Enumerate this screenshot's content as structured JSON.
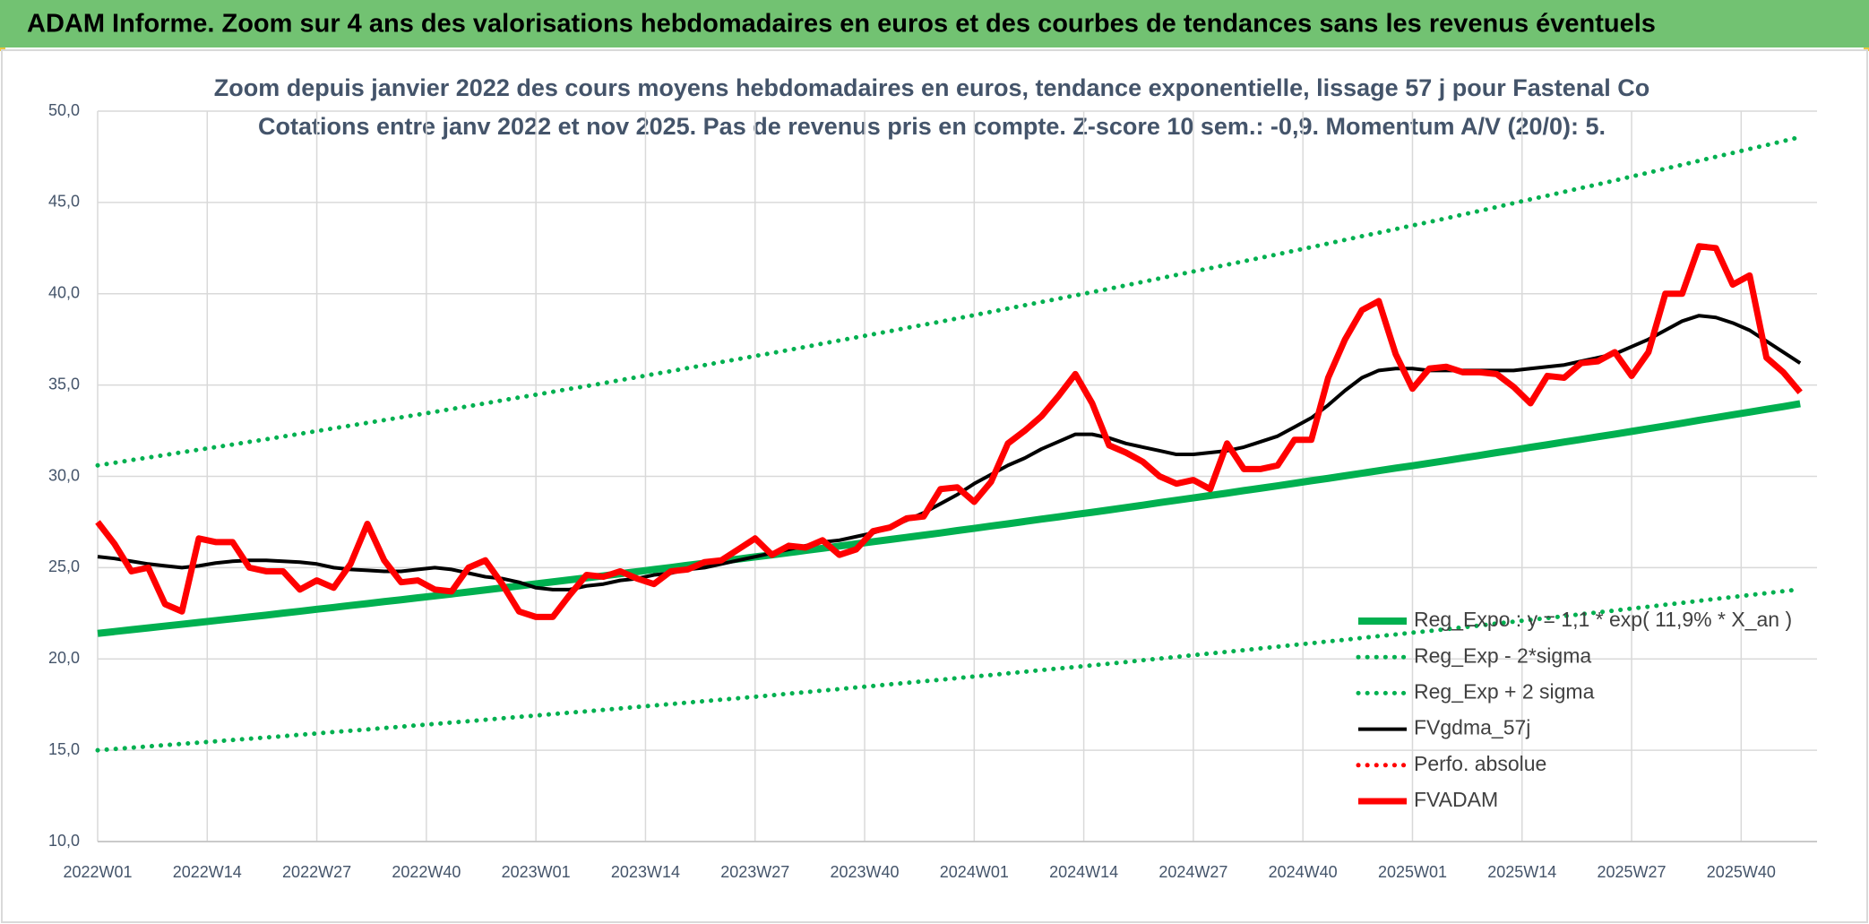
{
  "header": {
    "title": "ADAM Informe. Zoom sur 4 ans des valorisations hebdomadaires en euros et des courbes de tendances sans les revenus éventuels"
  },
  "chart_data": {
    "type": "line",
    "title": "Zoom depuis janvier 2022 des cours moyens hebdomadaires en euros, tendance exponentielle, lissage 57 j pour Fastenal Co",
    "subtitle": "Cotations entre janv 2022 et nov 2025. Pas de revenus pris en compte. Z-score 10 sem.: -0,9. Momentum A/V (20/0): 5.",
    "x": [
      0,
      2,
      4,
      6,
      8,
      10,
      12,
      14,
      16,
      18,
      20,
      22,
      24,
      26,
      28,
      30,
      32,
      34,
      36,
      38,
      40,
      42,
      44,
      46,
      48,
      50,
      52,
      54,
      56,
      58,
      60,
      62,
      64,
      66,
      68,
      70,
      72,
      74,
      76,
      78,
      80,
      82,
      84,
      86,
      88,
      90,
      92,
      94,
      96,
      98,
      100,
      102,
      104,
      106,
      108,
      110,
      112,
      114,
      116,
      118,
      120,
      122,
      124,
      126,
      128,
      130,
      132,
      134,
      136,
      138,
      140,
      142,
      144,
      146,
      148,
      150,
      152,
      154,
      156,
      158,
      160,
      162,
      164,
      166,
      168,
      170,
      172,
      174,
      176,
      178,
      180,
      182,
      184,
      186,
      188,
      190,
      192,
      194,
      196,
      198,
      200,
      202
    ],
    "xlim": [
      0,
      204
    ],
    "xticks": [
      {
        "value": 0,
        "label": "2022W01"
      },
      {
        "value": 13,
        "label": "2022W14"
      },
      {
        "value": 26,
        "label": "2022W27"
      },
      {
        "value": 39,
        "label": "2022W40"
      },
      {
        "value": 52,
        "label": "2023W01"
      },
      {
        "value": 65,
        "label": "2023W14"
      },
      {
        "value": 78,
        "label": "2023W27"
      },
      {
        "value": 91,
        "label": "2023W40"
      },
      {
        "value": 104,
        "label": "2024W01"
      },
      {
        "value": 117,
        "label": "2024W14"
      },
      {
        "value": 130,
        "label": "2024W27"
      },
      {
        "value": 143,
        "label": "2024W40"
      },
      {
        "value": 156,
        "label": "2025W01"
      },
      {
        "value": 169,
        "label": "2025W14"
      },
      {
        "value": 182,
        "label": "2025W27"
      },
      {
        "value": 195,
        "label": "2025W40"
      }
    ],
    "ylim": [
      10,
      50
    ],
    "yticks": [
      {
        "value": 10,
        "label": "10,0"
      },
      {
        "value": 15,
        "label": "15,0"
      },
      {
        "value": 20,
        "label": "20,0"
      },
      {
        "value": 25,
        "label": "25,0"
      },
      {
        "value": 30,
        "label": "30,0"
      },
      {
        "value": 35,
        "label": "35,0"
      },
      {
        "value": 40,
        "label": "40,0"
      },
      {
        "value": 45,
        "label": "45,0"
      },
      {
        "value": 50,
        "label": "50,0"
      }
    ],
    "grid": true,
    "legend": "bottom-right",
    "series": [
      {
        "name": "Reg_Expo : y = 1,1 * exp( 11,9% *  X_an )",
        "color": "#00b050",
        "line_style": "solid",
        "values": [
          21.4,
          21.5,
          21.6,
          21.7,
          21.8,
          21.9,
          22.0,
          22.1,
          22.2,
          22.3,
          22.4,
          22.51,
          22.61,
          22.72,
          22.82,
          22.93,
          23.03,
          23.14,
          23.24,
          23.35,
          23.45,
          23.56,
          23.67,
          23.78,
          23.89,
          24.0,
          24.11,
          24.22,
          24.33,
          24.44,
          24.55,
          24.67,
          24.78,
          24.9,
          25.01,
          25.13,
          25.24,
          25.36,
          25.47,
          25.59,
          25.7,
          25.82,
          25.94,
          26.06,
          26.18,
          26.3,
          26.42,
          26.54,
          26.66,
          26.78,
          26.9,
          27.03,
          27.15,
          27.28,
          27.4,
          27.53,
          27.66,
          27.78,
          27.91,
          28.03,
          28.16,
          28.29,
          28.42,
          28.56,
          28.69,
          28.82,
          28.95,
          29.08,
          29.22,
          29.35,
          29.48,
          29.62,
          29.76,
          29.89,
          30.03,
          30.17,
          30.31,
          30.45,
          30.58,
          30.72,
          30.86,
          31.01,
          31.15,
          31.3,
          31.44,
          31.59,
          31.73,
          31.88,
          32.02,
          32.17,
          32.31,
          32.46,
          32.61,
          32.76,
          32.91,
          33.07,
          33.22,
          33.37,
          33.52,
          33.67,
          33.82,
          33.98
        ]
      },
      {
        "name": "Reg_Exp - 2*sigma",
        "color": "#00b050",
        "line_style": "dotted",
        "values": [
          15.0,
          15.07,
          15.14,
          15.21,
          15.28,
          15.35,
          15.42,
          15.49,
          15.56,
          15.63,
          15.7,
          15.77,
          15.85,
          15.92,
          16.0,
          16.07,
          16.14,
          16.22,
          16.29,
          16.37,
          16.44,
          16.52,
          16.59,
          16.67,
          16.75,
          16.83,
          16.9,
          16.98,
          17.06,
          17.13,
          17.21,
          17.29,
          17.37,
          17.45,
          17.53,
          17.61,
          17.69,
          17.77,
          17.85,
          17.93,
          18.01,
          18.1,
          18.18,
          18.27,
          18.35,
          18.44,
          18.52,
          18.61,
          18.69,
          18.78,
          18.86,
          18.95,
          19.04,
          19.12,
          19.21,
          19.3,
          19.39,
          19.48,
          19.56,
          19.65,
          19.74,
          19.83,
          19.93,
          20.02,
          20.11,
          20.21,
          20.3,
          20.39,
          20.48,
          20.58,
          20.67,
          20.77,
          20.86,
          20.96,
          21.05,
          21.15,
          21.25,
          21.34,
          21.44,
          21.53,
          21.63,
          21.73,
          21.83,
          21.94,
          22.04,
          22.14,
          22.24,
          22.34,
          22.45,
          22.55,
          22.65,
          22.76,
          22.86,
          22.97,
          23.07,
          23.18,
          23.29,
          23.39,
          23.5,
          23.6,
          23.71,
          23.81
        ]
      },
      {
        "name": "Reg_Exp + 2 sigma",
        "color": "#00b050",
        "line_style": "dotted",
        "values": [
          30.6,
          30.74,
          30.89,
          31.03,
          31.17,
          31.32,
          31.46,
          31.6,
          31.74,
          31.89,
          32.03,
          32.18,
          32.33,
          32.48,
          32.63,
          32.78,
          32.93,
          33.08,
          33.23,
          33.38,
          33.53,
          33.69,
          33.84,
          34.0,
          34.16,
          34.32,
          34.47,
          34.63,
          34.79,
          34.94,
          35.1,
          35.27,
          35.43,
          35.6,
          35.76,
          35.93,
          36.09,
          36.26,
          36.42,
          36.59,
          36.75,
          36.92,
          37.09,
          37.27,
          37.44,
          37.61,
          37.78,
          37.95,
          38.13,
          38.3,
          38.47,
          38.65,
          38.83,
          39.01,
          39.19,
          39.37,
          39.55,
          39.73,
          39.91,
          40.09,
          40.27,
          40.46,
          40.65,
          40.84,
          41.03,
          41.22,
          41.4,
          41.59,
          41.78,
          41.97,
          42.16,
          42.36,
          42.55,
          42.75,
          42.95,
          43.15,
          43.34,
          43.54,
          43.74,
          43.93,
          44.13,
          44.34,
          44.54,
          44.75,
          44.96,
          45.17,
          45.37,
          45.58,
          45.79,
          45.99,
          46.2,
          46.42,
          46.63,
          46.85,
          47.06,
          47.28,
          47.5,
          47.71,
          47.93,
          48.14,
          48.36,
          48.58
        ]
      },
      {
        "name": "FVgdma_57j",
        "color": "#000000",
        "line_style": "solid",
        "values": [
          25.6,
          25.5,
          25.35,
          25.2,
          25.1,
          25.0,
          25.1,
          25.25,
          25.35,
          25.4,
          25.4,
          25.35,
          25.3,
          25.2,
          25.0,
          24.9,
          24.85,
          24.8,
          24.8,
          24.9,
          25.0,
          24.9,
          24.7,
          24.5,
          24.4,
          24.2,
          23.9,
          23.8,
          23.8,
          24.0,
          24.1,
          24.3,
          24.4,
          24.6,
          24.7,
          24.9,
          25.0,
          25.2,
          25.4,
          25.6,
          25.8,
          26.0,
          26.2,
          26.4,
          26.5,
          26.7,
          26.9,
          27.2,
          27.6,
          28.0,
          28.5,
          29.0,
          29.6,
          30.1,
          30.6,
          31.0,
          31.5,
          31.9,
          32.3,
          32.3,
          32.1,
          31.8,
          31.6,
          31.4,
          31.2,
          31.2,
          31.3,
          31.4,
          31.6,
          31.9,
          32.2,
          32.7,
          33.2,
          33.9,
          34.7,
          35.4,
          35.8,
          35.9,
          35.9,
          35.8,
          35.8,
          35.8,
          35.8,
          35.8,
          35.8,
          35.9,
          36.0,
          36.1,
          36.3,
          36.5,
          36.7,
          37.1,
          37.5,
          38.0,
          38.5,
          38.8,
          38.7,
          38.4,
          38.0,
          37.4,
          36.8,
          36.2
        ]
      },
      {
        "name": "Perfo. absolue",
        "color": "#ff0000",
        "line_style": "dotted",
        "values": [
          null,
          null,
          null,
          null,
          null,
          null,
          null,
          null,
          null,
          null,
          null,
          null,
          null,
          null,
          null,
          null,
          null,
          null,
          null,
          null,
          null,
          null,
          null,
          null,
          null,
          null,
          null,
          null,
          null,
          null,
          null,
          null,
          null,
          null,
          null,
          null,
          null,
          null,
          null,
          null,
          null,
          null,
          null,
          null,
          null,
          null,
          null,
          null,
          null,
          null,
          null,
          null,
          null,
          null,
          null,
          null,
          null,
          null,
          null,
          null,
          null,
          null,
          null,
          null,
          null,
          null,
          null,
          null,
          null,
          null,
          null,
          null,
          null,
          null,
          null,
          null,
          null,
          null,
          null,
          null,
          null,
          null,
          null,
          null,
          null,
          null,
          null,
          null,
          null,
          null,
          null,
          null,
          null,
          null,
          null,
          null,
          null,
          null,
          null,
          null,
          null,
          null
        ]
      },
      {
        "name": "FVADAM",
        "color": "#ff0000",
        "line_style": "solid",
        "values": [
          27.5,
          26.3,
          24.8,
          25.0,
          23.0,
          22.6,
          26.6,
          26.4,
          26.4,
          25.0,
          24.8,
          24.8,
          23.8,
          24.3,
          23.9,
          25.2,
          27.4,
          25.4,
          24.2,
          24.3,
          23.8,
          23.7,
          25.0,
          25.4,
          24.1,
          22.6,
          22.3,
          22.3,
          23.5,
          24.6,
          24.5,
          24.8,
          24.4,
          24.1,
          24.8,
          24.9,
          25.3,
          25.4,
          26.0,
          26.6,
          25.7,
          26.2,
          26.1,
          26.5,
          25.7,
          26.0,
          27.0,
          27.2,
          27.7,
          27.8,
          29.3,
          29.4,
          28.6,
          29.7,
          31.8,
          32.5,
          33.3,
          34.4,
          35.6,
          34.0,
          31.7,
          31.3,
          30.8,
          30.0,
          29.6,
          29.8,
          29.3,
          31.8,
          30.4,
          30.4,
          30.6,
          32.0,
          32.0,
          35.4,
          37.5,
          39.1,
          39.6,
          36.7,
          34.8,
          35.9,
          36.0,
          35.7,
          35.7,
          35.6,
          34.9,
          34.0,
          35.5,
          35.4,
          36.2,
          36.3,
          36.8,
          35.5,
          36.8,
          40.0,
          40.0,
          42.6,
          42.5,
          40.5,
          41.0,
          36.5,
          35.7,
          34.6
        ]
      }
    ]
  }
}
